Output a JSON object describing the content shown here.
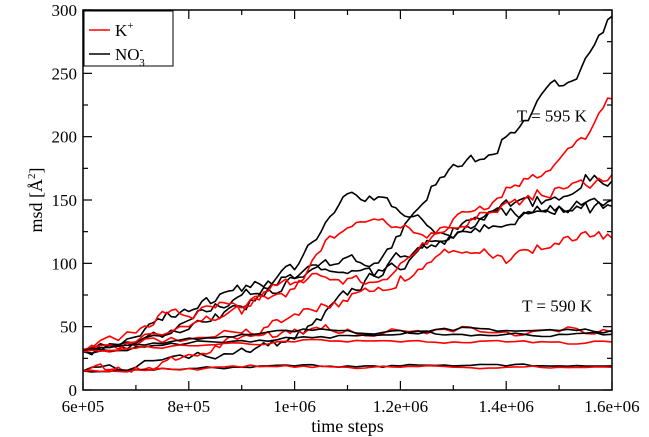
{
  "chart_data": {
    "type": "line",
    "title": "",
    "xlabel": "time steps",
    "ylabel": "msd [Å²]",
    "ylabel_parts": {
      "main": "msd [",
      "symbol": "Å",
      "sup": "2",
      "close": "]"
    },
    "xlim": [
      600000,
      1600000
    ],
    "ylim": [
      0,
      300
    ],
    "x_ticks": [
      600000,
      800000,
      1000000,
      1200000,
      1400000,
      1600000
    ],
    "x_tick_labels": [
      "6e+05",
      "8e+05",
      "1e+06",
      "1.2e+06",
      "1.4e+06",
      "1.6e+06"
    ],
    "y_ticks": [
      0,
      50,
      100,
      150,
      200,
      250,
      300
    ],
    "y_tick_labels": [
      "0",
      "50",
      "100",
      "150",
      "200",
      "250",
      "300"
    ],
    "grid": false,
    "legend_position": "top-left",
    "legend": [
      {
        "label_main": "K",
        "label_sup": "+",
        "label_sub": "",
        "color": "#ff0000"
      },
      {
        "label_main": "NO",
        "label_sup": "-",
        "label_sub": "3",
        "color": "#000000"
      }
    ],
    "annotations": [
      {
        "text": "T = 595 K",
        "x": 1420000,
        "y": 212
      },
      {
        "text": "T = 590 K",
        "x": 1430000,
        "y": 62
      }
    ],
    "series": [
      {
        "color": "#000000",
        "noise": 5,
        "points": [
          [
            600000,
            31
          ],
          [
            700000,
            42
          ],
          [
            750000,
            55
          ],
          [
            800000,
            62
          ],
          [
            850000,
            70
          ],
          [
            900000,
            78
          ],
          [
            950000,
            86
          ],
          [
            1000000,
            88
          ],
          [
            1050000,
            100
          ],
          [
            1100000,
            105
          ],
          [
            1150000,
            100
          ],
          [
            1200000,
            122
          ],
          [
            1250000,
            150
          ],
          [
            1300000,
            178
          ],
          [
            1350000,
            182
          ],
          [
            1400000,
            200
          ],
          [
            1450000,
            220
          ],
          [
            1500000,
            240
          ],
          [
            1550000,
            262
          ],
          [
            1600000,
            295
          ]
        ]
      },
      {
        "color": "#000000",
        "noise": 4,
        "points": [
          [
            600000,
            32
          ],
          [
            700000,
            38
          ],
          [
            800000,
            48
          ],
          [
            850000,
            60
          ],
          [
            900000,
            66
          ],
          [
            950000,
            80
          ],
          [
            1000000,
            95
          ],
          [
            1050000,
            125
          ],
          [
            1100000,
            155
          ],
          [
            1150000,
            150
          ],
          [
            1200000,
            140
          ],
          [
            1250000,
            130
          ],
          [
            1300000,
            120
          ],
          [
            1350000,
            135
          ],
          [
            1400000,
            150
          ],
          [
            1450000,
            145
          ],
          [
            1500000,
            150
          ],
          [
            1550000,
            170
          ],
          [
            1600000,
            165
          ]
        ]
      },
      {
        "color": "#000000",
        "noise": 4,
        "points": [
          [
            600000,
            30
          ],
          [
            700000,
            37
          ],
          [
            800000,
            55
          ],
          [
            850000,
            68
          ],
          [
            900000,
            75
          ],
          [
            950000,
            80
          ],
          [
            1000000,
            88
          ],
          [
            1050000,
            95
          ],
          [
            1100000,
            92
          ],
          [
            1150000,
            90
          ],
          [
            1200000,
            95
          ],
          [
            1250000,
            112
          ],
          [
            1300000,
            120
          ],
          [
            1350000,
            125
          ],
          [
            1400000,
            130
          ],
          [
            1450000,
            140
          ],
          [
            1500000,
            145
          ],
          [
            1550000,
            148
          ],
          [
            1600000,
            150
          ]
        ]
      },
      {
        "color": "#000000",
        "noise": 4,
        "points": [
          [
            600000,
            15
          ],
          [
            700000,
            18
          ],
          [
            800000,
            25
          ],
          [
            900000,
            33
          ],
          [
            950000,
            35
          ],
          [
            1000000,
            40
          ],
          [
            1050000,
            55
          ],
          [
            1100000,
            75
          ],
          [
            1150000,
            90
          ],
          [
            1200000,
            105
          ],
          [
            1250000,
            118
          ],
          [
            1300000,
            128
          ],
          [
            1350000,
            135
          ],
          [
            1400000,
            138
          ],
          [
            1450000,
            140
          ],
          [
            1500000,
            145
          ],
          [
            1550000,
            148
          ],
          [
            1600000,
            145
          ]
        ]
      },
      {
        "color": "#ff0000",
        "noise": 4,
        "points": [
          [
            600000,
            32
          ],
          [
            700000,
            45
          ],
          [
            750000,
            62
          ],
          [
            800000,
            58
          ],
          [
            850000,
            65
          ],
          [
            900000,
            60
          ],
          [
            950000,
            78
          ],
          [
            1000000,
            85
          ],
          [
            1050000,
            110
          ],
          [
            1100000,
            128
          ],
          [
            1150000,
            135
          ],
          [
            1200000,
            128
          ],
          [
            1250000,
            120
          ],
          [
            1300000,
            135
          ],
          [
            1350000,
            145
          ],
          [
            1400000,
            160
          ],
          [
            1450000,
            170
          ],
          [
            1500000,
            182
          ],
          [
            1550000,
            198
          ],
          [
            1600000,
            230
          ]
        ]
      },
      {
        "color": "#ff0000",
        "noise": 4,
        "points": [
          [
            600000,
            30
          ],
          [
            700000,
            38
          ],
          [
            800000,
            50
          ],
          [
            850000,
            55
          ],
          [
            900000,
            65
          ],
          [
            950000,
            72
          ],
          [
            1000000,
            80
          ],
          [
            1050000,
            90
          ],
          [
            1100000,
            88
          ],
          [
            1150000,
            85
          ],
          [
            1200000,
            100
          ],
          [
            1250000,
            115
          ],
          [
            1300000,
            128
          ],
          [
            1350000,
            140
          ],
          [
            1400000,
            148
          ],
          [
            1450000,
            150
          ],
          [
            1500000,
            160
          ],
          [
            1550000,
            162
          ],
          [
            1600000,
            170
          ]
        ]
      },
      {
        "color": "#ff0000",
        "noise": 4,
        "points": [
          [
            600000,
            31
          ],
          [
            700000,
            35
          ],
          [
            800000,
            40
          ],
          [
            900000,
            45
          ],
          [
            950000,
            50
          ],
          [
            1000000,
            60
          ],
          [
            1050000,
            68
          ],
          [
            1100000,
            70
          ],
          [
            1150000,
            78
          ],
          [
            1200000,
            90
          ],
          [
            1250000,
            100
          ],
          [
            1300000,
            110
          ],
          [
            1350000,
            108
          ],
          [
            1400000,
            100
          ],
          [
            1450000,
            108
          ],
          [
            1500000,
            115
          ],
          [
            1550000,
            125
          ],
          [
            1600000,
            120
          ]
        ]
      },
      {
        "color": "#ff0000",
        "noise": 3,
        "points": [
          [
            600000,
            15
          ],
          [
            650000,
            16
          ],
          [
            700000,
            18
          ],
          [
            750000,
            22
          ],
          [
            800000,
            28
          ],
          [
            850000,
            35
          ],
          [
            900000,
            42
          ],
          [
            950000,
            46
          ],
          [
            1000000,
            48
          ],
          [
            1050000,
            48
          ],
          [
            1100000,
            48
          ],
          [
            1200000,
            47
          ],
          [
            1300000,
            46
          ],
          [
            1400000,
            46
          ],
          [
            1500000,
            46
          ],
          [
            1600000,
            46
          ]
        ]
      },
      {
        "color": "#000000",
        "noise": 1.5,
        "points": [
          [
            600000,
            30
          ],
          [
            700000,
            36
          ],
          [
            800000,
            41
          ],
          [
            900000,
            44
          ],
          [
            1000000,
            46
          ],
          [
            1100000,
            47
          ],
          [
            1200000,
            47
          ],
          [
            1300000,
            47
          ],
          [
            1400000,
            47
          ],
          [
            1500000,
            47
          ],
          [
            1600000,
            47
          ]
        ]
      },
      {
        "color": "#000000",
        "noise": 1.5,
        "points": [
          [
            600000,
            31
          ],
          [
            700000,
            34
          ],
          [
            800000,
            37
          ],
          [
            900000,
            39
          ],
          [
            1000000,
            41
          ],
          [
            1100000,
            43
          ],
          [
            1200000,
            44
          ],
          [
            1300000,
            44
          ],
          [
            1400000,
            44
          ],
          [
            1500000,
            44
          ],
          [
            1600000,
            44
          ]
        ]
      },
      {
        "color": "#ff0000",
        "noise": 1.2,
        "points": [
          [
            600000,
            30
          ],
          [
            700000,
            33
          ],
          [
            800000,
            35
          ],
          [
            900000,
            37
          ],
          [
            1000000,
            38
          ],
          [
            1100000,
            38
          ],
          [
            1200000,
            38
          ],
          [
            1300000,
            38
          ],
          [
            1400000,
            38
          ],
          [
            1500000,
            38
          ],
          [
            1600000,
            38
          ]
        ]
      },
      {
        "color": "#000000",
        "noise": 1.0,
        "points": [
          [
            600000,
            15
          ],
          [
            700000,
            16
          ],
          [
            800000,
            17
          ],
          [
            900000,
            18
          ],
          [
            1000000,
            19
          ],
          [
            1100000,
            19
          ],
          [
            1200000,
            19
          ],
          [
            1300000,
            19
          ],
          [
            1400000,
            19
          ],
          [
            1500000,
            19
          ],
          [
            1600000,
            19
          ]
        ]
      },
      {
        "color": "#ff0000",
        "noise": 1.0,
        "points": [
          [
            600000,
            15
          ],
          [
            700000,
            16
          ],
          [
            800000,
            17
          ],
          [
            900000,
            18
          ],
          [
            1000000,
            18
          ],
          [
            1100000,
            18
          ],
          [
            1200000,
            18
          ],
          [
            1300000,
            18
          ],
          [
            1400000,
            18
          ],
          [
            1500000,
            18
          ],
          [
            1600000,
            18
          ]
        ]
      }
    ]
  }
}
